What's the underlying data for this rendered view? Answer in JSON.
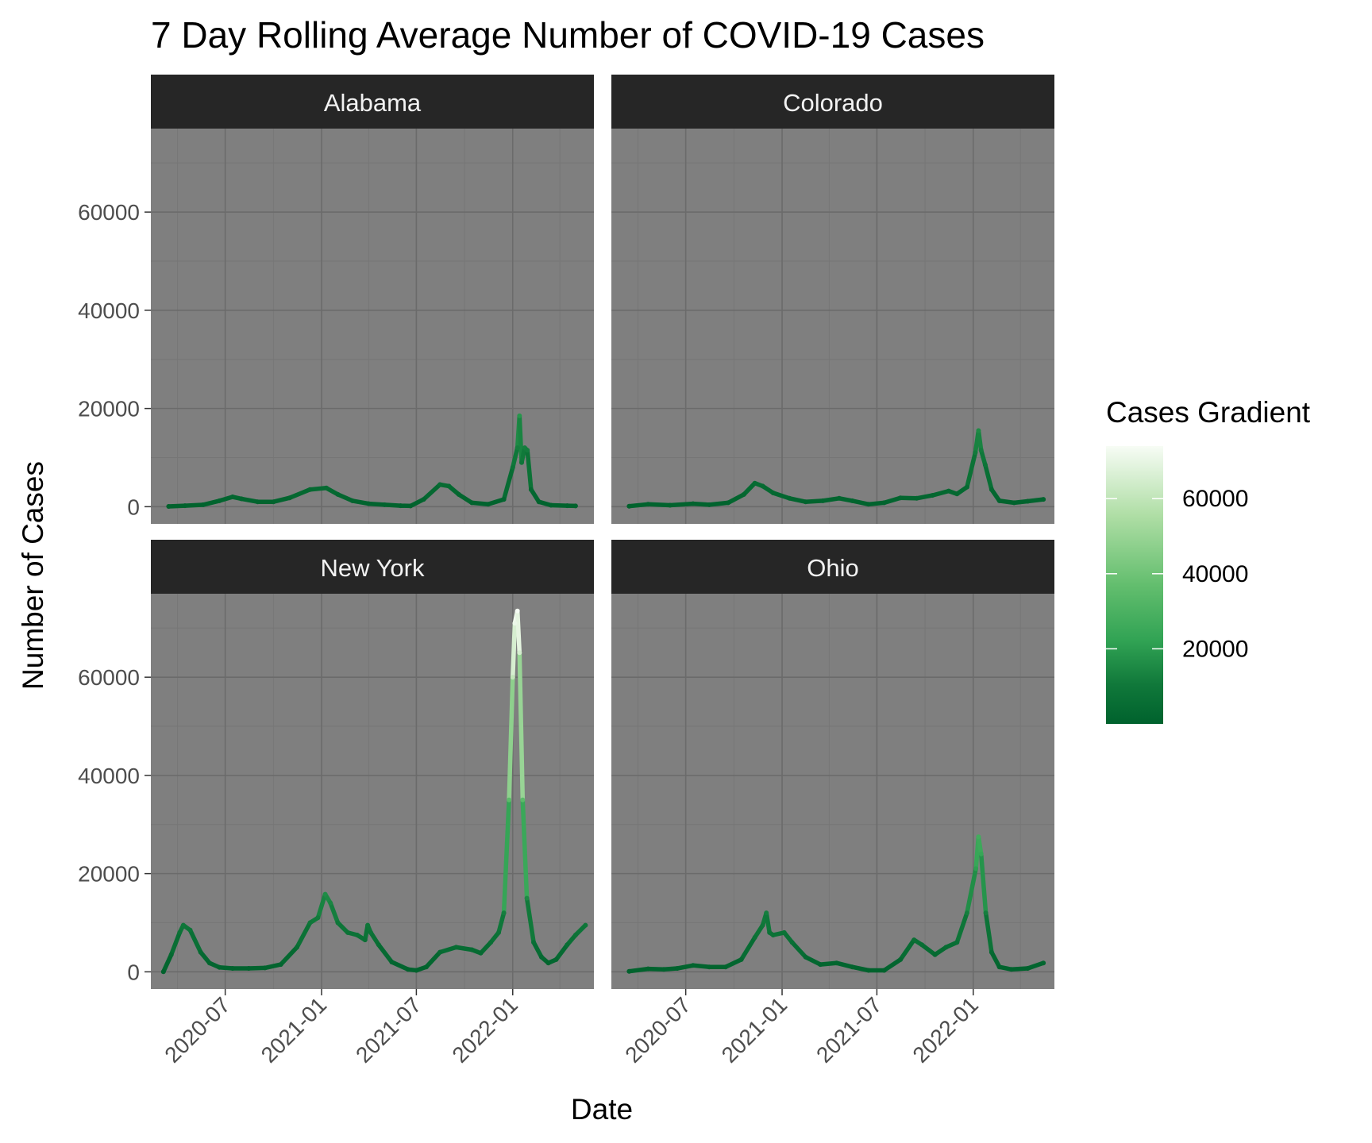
{
  "chart_data": {
    "type": "line",
    "title": "7 Day Rolling Average Number of COVID-19 Cases",
    "xlabel": "Date",
    "ylabel": "Number of Cases",
    "x_ticks": [
      "2020-07",
      "2021-01",
      "2021-07",
      "2022-01"
    ],
    "y_ticks": [
      0,
      20000,
      40000,
      60000
    ],
    "ylim": [
      -3500,
      77000
    ],
    "xlim": [
      "2020-02-10",
      "2022-06-05"
    ],
    "grid": true,
    "legend": {
      "title": "Cases Gradient",
      "position": "right",
      "ticks": [
        20000,
        40000,
        60000
      ],
      "min": 0,
      "max": 74000,
      "low_color": "#00622d",
      "mid_color": "#41ab5d",
      "high_color": "#f7fcf5"
    },
    "colors": {
      "panel_background": "#7f7f7f",
      "strip_background": "#262626",
      "strip_text": "#f2f2f2",
      "grid_major": "#6b6b6b",
      "grid_minor": "#767676"
    },
    "panels": [
      {
        "name": "Alabama",
        "points": [
          [
            "2020-03-15",
            50
          ],
          [
            "2020-04-15",
            200
          ],
          [
            "2020-05-20",
            400
          ],
          [
            "2020-06-20",
            1200
          ],
          [
            "2020-07-15",
            2000
          ],
          [
            "2020-08-01",
            1600
          ],
          [
            "2020-09-01",
            1000
          ],
          [
            "2020-10-01",
            1000
          ],
          [
            "2020-11-01",
            1800
          ],
          [
            "2020-12-10",
            3500
          ],
          [
            "2021-01-10",
            3800
          ],
          [
            "2021-02-01",
            2500
          ],
          [
            "2021-03-01",
            1200
          ],
          [
            "2021-04-01",
            600
          ],
          [
            "2021-05-01",
            400
          ],
          [
            "2021-06-01",
            200
          ],
          [
            "2021-06-20",
            150
          ],
          [
            "2021-07-15",
            1500
          ],
          [
            "2021-08-15",
            4500
          ],
          [
            "2021-09-01",
            4200
          ],
          [
            "2021-09-20",
            2500
          ],
          [
            "2021-10-15",
            800
          ],
          [
            "2021-11-15",
            500
          ],
          [
            "2021-12-15",
            1500
          ],
          [
            "2022-01-01",
            8000
          ],
          [
            "2022-01-10",
            12000
          ],
          [
            "2022-01-14",
            18500
          ],
          [
            "2022-01-18",
            9000
          ],
          [
            "2022-01-24",
            12000
          ],
          [
            "2022-01-29",
            11500
          ],
          [
            "2022-02-05",
            3500
          ],
          [
            "2022-02-20",
            1000
          ],
          [
            "2022-03-15",
            300
          ],
          [
            "2022-04-15",
            200
          ],
          [
            "2022-05-01",
            150
          ]
        ]
      },
      {
        "name": "Colorado",
        "points": [
          [
            "2020-03-15",
            100
          ],
          [
            "2020-04-20",
            500
          ],
          [
            "2020-06-01",
            300
          ],
          [
            "2020-07-15",
            600
          ],
          [
            "2020-08-15",
            400
          ],
          [
            "2020-09-20",
            800
          ],
          [
            "2020-10-20",
            2500
          ],
          [
            "2020-11-10",
            4800
          ],
          [
            "2020-11-25",
            4200
          ],
          [
            "2020-12-15",
            2800
          ],
          [
            "2021-01-15",
            1700
          ],
          [
            "2021-02-15",
            1000
          ],
          [
            "2021-03-20",
            1200
          ],
          [
            "2021-04-20",
            1700
          ],
          [
            "2021-05-15",
            1200
          ],
          [
            "2021-06-15",
            500
          ],
          [
            "2021-07-15",
            800
          ],
          [
            "2021-08-15",
            1800
          ],
          [
            "2021-09-15",
            1700
          ],
          [
            "2021-10-15",
            2300
          ],
          [
            "2021-11-15",
            3200
          ],
          [
            "2021-12-01",
            2600
          ],
          [
            "2021-12-20",
            4000
          ],
          [
            "2022-01-05",
            11000
          ],
          [
            "2022-01-11",
            15500
          ],
          [
            "2022-01-16",
            11500
          ],
          [
            "2022-01-24",
            8500
          ],
          [
            "2022-02-05",
            3500
          ],
          [
            "2022-02-20",
            1200
          ],
          [
            "2022-03-20",
            800
          ],
          [
            "2022-04-15",
            1100
          ],
          [
            "2022-05-15",
            1500
          ]
        ]
      },
      {
        "name": "New York",
        "points": [
          [
            "2020-03-05",
            0
          ],
          [
            "2020-03-20",
            3500
          ],
          [
            "2020-04-05",
            8000
          ],
          [
            "2020-04-12",
            9500
          ],
          [
            "2020-04-25",
            8500
          ],
          [
            "2020-05-15",
            4000
          ],
          [
            "2020-06-01",
            1800
          ],
          [
            "2020-06-20",
            900
          ],
          [
            "2020-07-15",
            700
          ],
          [
            "2020-08-15",
            700
          ],
          [
            "2020-09-15",
            800
          ],
          [
            "2020-10-15",
            1500
          ],
          [
            "2020-11-15",
            5000
          ],
          [
            "2020-12-10",
            10000
          ],
          [
            "2020-12-25",
            11000
          ],
          [
            "2021-01-08",
            15800
          ],
          [
            "2021-01-18",
            14000
          ],
          [
            "2021-02-01",
            10000
          ],
          [
            "2021-02-20",
            8000
          ],
          [
            "2021-03-10",
            7500
          ],
          [
            "2021-03-25",
            6500
          ],
          [
            "2021-03-30",
            9500
          ],
          [
            "2021-04-05",
            8000
          ],
          [
            "2021-04-20",
            5500
          ],
          [
            "2021-05-15",
            2000
          ],
          [
            "2021-06-15",
            500
          ],
          [
            "2021-07-01",
            300
          ],
          [
            "2021-07-20",
            1000
          ],
          [
            "2021-08-15",
            4000
          ],
          [
            "2021-09-15",
            5000
          ],
          [
            "2021-10-15",
            4500
          ],
          [
            "2021-11-01",
            3800
          ],
          [
            "2021-11-20",
            6000
          ],
          [
            "2021-12-05",
            8000
          ],
          [
            "2021-12-15",
            12000
          ],
          [
            "2021-12-25",
            35000
          ],
          [
            "2022-01-01",
            60000
          ],
          [
            "2022-01-05",
            71000
          ],
          [
            "2022-01-10",
            73500
          ],
          [
            "2022-01-14",
            65000
          ],
          [
            "2022-01-20",
            35000
          ],
          [
            "2022-01-28",
            15000
          ],
          [
            "2022-02-10",
            6000
          ],
          [
            "2022-02-25",
            3000
          ],
          [
            "2022-03-10",
            1800
          ],
          [
            "2022-03-25",
            2500
          ],
          [
            "2022-04-15",
            5500
          ],
          [
            "2022-05-01",
            7500
          ],
          [
            "2022-05-20",
            9500
          ]
        ]
      },
      {
        "name": "Ohio",
        "points": [
          [
            "2020-03-15",
            100
          ],
          [
            "2020-04-20",
            600
          ],
          [
            "2020-05-20",
            500
          ],
          [
            "2020-06-15",
            700
          ],
          [
            "2020-07-15",
            1300
          ],
          [
            "2020-08-15",
            1000
          ],
          [
            "2020-09-15",
            1000
          ],
          [
            "2020-10-15",
            2500
          ],
          [
            "2020-11-10",
            7000
          ],
          [
            "2020-11-25",
            9500
          ],
          [
            "2020-12-02",
            12000
          ],
          [
            "2020-12-08",
            8000
          ],
          [
            "2020-12-15",
            7500
          ],
          [
            "2021-01-05",
            8000
          ],
          [
            "2021-01-20",
            6000
          ],
          [
            "2021-02-15",
            3000
          ],
          [
            "2021-03-15",
            1500
          ],
          [
            "2021-04-15",
            1800
          ],
          [
            "2021-05-15",
            1000
          ],
          [
            "2021-06-15",
            300
          ],
          [
            "2021-07-15",
            300
          ],
          [
            "2021-08-15",
            2500
          ],
          [
            "2021-09-10",
            6500
          ],
          [
            "2021-09-25",
            5500
          ],
          [
            "2021-10-20",
            3500
          ],
          [
            "2021-11-10",
            5000
          ],
          [
            "2021-12-01",
            6000
          ],
          [
            "2021-12-20",
            12000
          ],
          [
            "2022-01-06",
            21000
          ],
          [
            "2022-01-11",
            27500
          ],
          [
            "2022-01-16",
            24000
          ],
          [
            "2022-01-25",
            12000
          ],
          [
            "2022-02-05",
            4000
          ],
          [
            "2022-02-20",
            1000
          ],
          [
            "2022-03-15",
            500
          ],
          [
            "2022-04-15",
            700
          ],
          [
            "2022-05-15",
            1800
          ]
        ]
      }
    ]
  }
}
